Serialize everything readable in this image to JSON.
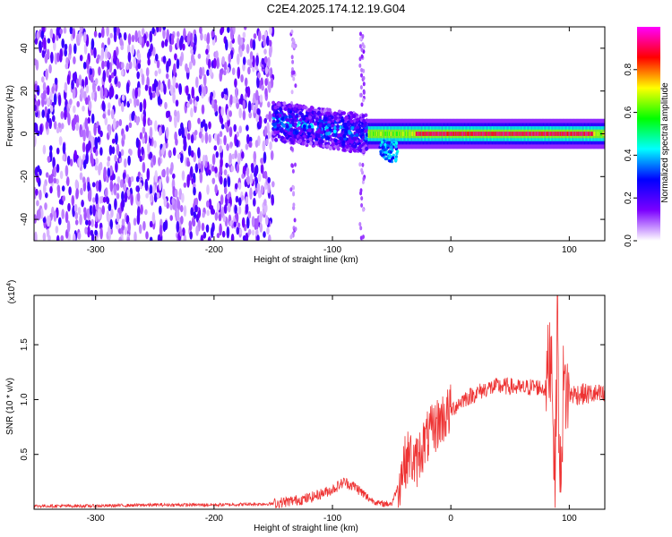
{
  "title": "C2E4.2025.174.12.19.G04",
  "chart_data": [
    {
      "type": "heatmap",
      "title": "C2E4.2025.174.12.19.G04",
      "xlabel": "Height of straight line (km)",
      "ylabel": "Frequency (Hz)",
      "xlim": [
        -352,
        130
      ],
      "ylim": [
        -50,
        50
      ],
      "x_ticks": [
        -300,
        -200,
        -100,
        0,
        100
      ],
      "y_ticks": [
        -40,
        -20,
        0,
        20,
        40
      ],
      "colorbar": {
        "label": "Normalized spectral amplitude",
        "range": [
          0.0,
          1.0
        ],
        "ticks": [
          0.0,
          0.2,
          0.4,
          0.6,
          0.8
        ],
        "colors": [
          "#ffffff",
          "#7b00ff",
          "#0000ff",
          "#00ffff",
          "#00ff00",
          "#ffff00",
          "#ff0000",
          "#ff00ff"
        ]
      },
      "features": [
        {
          "x_range": [
            -352,
            -150
          ],
          "description": "scattered noise across all frequencies"
        },
        {
          "x_range": [
            -150,
            -70
          ],
          "freq_center": 5,
          "amplitude": 0.35
        },
        {
          "x_range": [
            -70,
            130
          ],
          "freq_center": 0,
          "amplitude": 0.85
        }
      ]
    },
    {
      "type": "line",
      "xlabel": "Height of straight line (km)",
      "ylabel": "SNR (10 * v/v)",
      "y_scale_label": "(x10",
      "y_scale_exp": "4",
      "xlim": [
        -352,
        130
      ],
      "ylim": [
        0,
        1.95
      ],
      "x_ticks": [
        -300,
        -200,
        -100,
        0,
        100
      ],
      "y_ticks": [
        0.5,
        1.0,
        1.5
      ],
      "y_tick_labels": [
        "0.5",
        "1.0",
        "1.5"
      ],
      "color": "#ee3333",
      "x": [
        -352,
        -300,
        -250,
        -200,
        -150,
        -120,
        -100,
        -90,
        -80,
        -70,
        -60,
        -50,
        -45,
        -40,
        -35,
        -30,
        -25,
        -20,
        -15,
        -10,
        -5,
        0,
        5,
        10,
        20,
        30,
        40,
        50,
        60,
        70,
        80,
        85,
        88,
        90,
        92,
        95,
        100,
        110,
        120,
        130
      ],
      "values": [
        0.03,
        0.03,
        0.04,
        0.04,
        0.05,
        0.1,
        0.18,
        0.25,
        0.2,
        0.1,
        0.05,
        0.05,
        0.2,
        0.4,
        0.5,
        0.4,
        0.55,
        0.65,
        0.72,
        0.8,
        0.85,
        0.9,
        0.95,
        1.0,
        1.05,
        1.1,
        1.12,
        1.12,
        1.1,
        1.12,
        1.1,
        1.5,
        0.2,
        1.9,
        0.1,
        1.1,
        1.05,
        1.05,
        1.05,
        1.03
      ]
    }
  ]
}
